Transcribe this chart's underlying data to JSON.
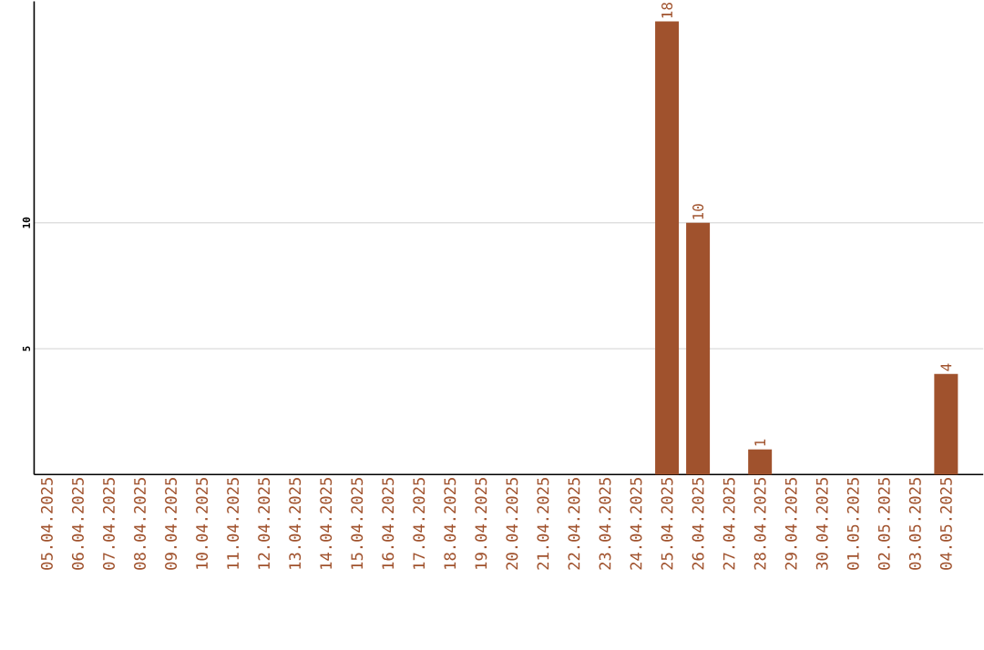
{
  "chart_data": {
    "type": "bar",
    "categories": [
      "05.04.2025",
      "06.04.2025",
      "07.04.2025",
      "08.04.2025",
      "09.04.2025",
      "10.04.2025",
      "11.04.2025",
      "12.04.2025",
      "13.04.2025",
      "14.04.2025",
      "15.04.2025",
      "16.04.2025",
      "17.04.2025",
      "18.04.2025",
      "19.04.2025",
      "20.04.2025",
      "21.04.2025",
      "22.04.2025",
      "23.04.2025",
      "24.04.2025",
      "25.04.2025",
      "26.04.2025",
      "27.04.2025",
      "28.04.2025",
      "29.04.2025",
      "30.04.2025",
      "01.05.2025",
      "02.05.2025",
      "03.05.2025",
      "04.05.2025"
    ],
    "values": [
      0,
      0,
      0,
      0,
      0,
      0,
      0,
      0,
      0,
      0,
      0,
      0,
      0,
      0,
      0,
      0,
      0,
      0,
      0,
      0,
      18,
      10,
      0,
      1,
      0,
      0,
      0,
      0,
      0,
      4
    ],
    "value_labels": [
      null,
      null,
      null,
      null,
      null,
      null,
      null,
      null,
      null,
      null,
      null,
      null,
      null,
      null,
      null,
      null,
      null,
      null,
      null,
      null,
      "18",
      "10",
      null,
      "1",
      null,
      null,
      null,
      null,
      null,
      "4"
    ],
    "color": "#a0522d",
    "ylim": [
      0,
      18.8
    ],
    "yticks": [
      5,
      10
    ],
    "grid": "y"
  }
}
